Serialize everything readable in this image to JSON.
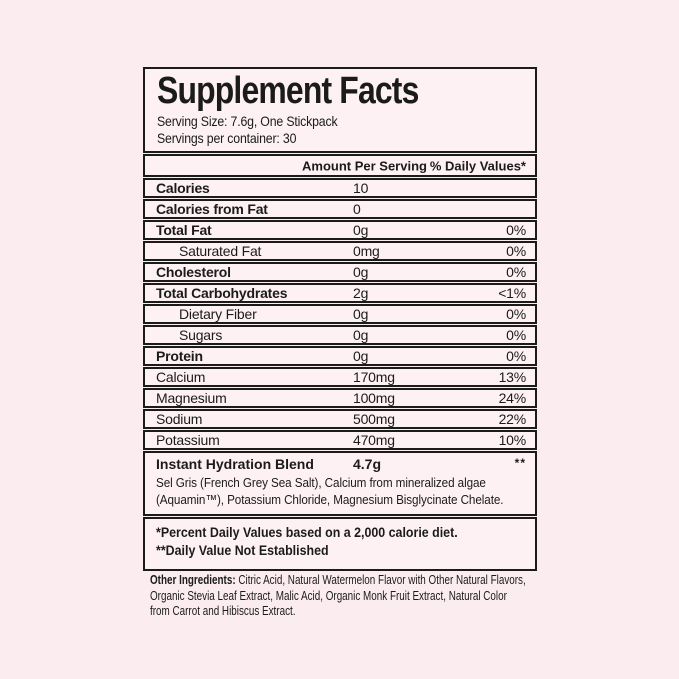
{
  "label": {
    "title": "Supplement Facts",
    "serving_size": "Serving Size: 7.6g, One Stickpack",
    "servings_per_container": "Servings per container: 30",
    "header": {
      "amount": "Amount Per Serving",
      "dv": "% Daily Values*"
    },
    "rows": [
      {
        "name": "Calories",
        "amount": "10",
        "dv": "",
        "bold": true,
        "indent": false
      },
      {
        "name": "Calories from Fat",
        "amount": "0",
        "dv": "",
        "bold": true,
        "indent": false
      },
      {
        "name": "Total Fat",
        "amount": "0g",
        "dv": "0%",
        "bold": true,
        "indent": false
      },
      {
        "name": "Saturated Fat",
        "amount": "0mg",
        "dv": "0%",
        "bold": false,
        "indent": true
      },
      {
        "name": "Cholesterol",
        "amount": "0g",
        "dv": "0%",
        "bold": true,
        "indent": false
      },
      {
        "name": "Total Carbohydrates",
        "amount": "2g",
        "dv": "<1%",
        "bold": true,
        "indent": false
      },
      {
        "name": "Dietary Fiber",
        "amount": "0g",
        "dv": "0%",
        "bold": false,
        "indent": true
      },
      {
        "name": "Sugars",
        "amount": "0g",
        "dv": "0%",
        "bold": false,
        "indent": true
      },
      {
        "name": "Protein",
        "amount": "0g",
        "dv": "0%",
        "bold": true,
        "indent": false
      },
      {
        "name": "Calcium",
        "amount": "170mg",
        "dv": "13%",
        "bold": false,
        "indent": false
      },
      {
        "name": "Magnesium",
        "amount": "100mg",
        "dv": "24%",
        "bold": false,
        "indent": false
      },
      {
        "name": "Sodium",
        "amount": "500mg",
        "dv": "22%",
        "bold": false,
        "indent": false
      },
      {
        "name": "Potassium",
        "amount": "470mg",
        "dv": "10%",
        "bold": false,
        "indent": false
      }
    ],
    "blend": {
      "name": "Instant Hydration Blend",
      "amount": "4.7g",
      "dv": "**",
      "description_lines": [
        "Sel Gris (French Grey Sea Salt), Calcium from mineralized algae",
        "(Aquamin™), Potassium Chloride, Magnesium Bisglycinate Chelate."
      ]
    },
    "footnotes": [
      "*Percent Daily Values based on a 2,000 calorie diet.",
      "**Daily Value Not Established"
    ],
    "other_ingredients_label": "Other Ingredients:",
    "other_ingredients_lines": [
      "Citric Acid, Natural Watermelon Flavor with Other Natural Flavors,",
      "Organic Stevia Leaf Extract, Malic Acid, Organic Monk Fruit Extract, Natural Color",
      "from Carrot and Hibiscus Extract."
    ]
  },
  "colors": {
    "page_background": "#fbecef",
    "panel_background": "#fdf1f3",
    "border": "#1b1b1b",
    "text": "#1b1b1b"
  }
}
